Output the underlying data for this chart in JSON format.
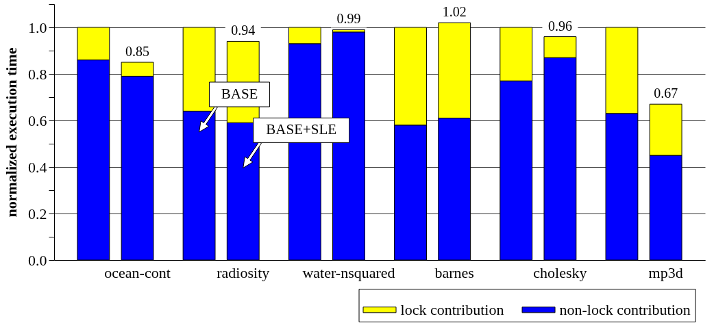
{
  "chart_data": {
    "type": "bar",
    "stacked": true,
    "categories": [
      null,
      "ocean-cont",
      null,
      "radiosity",
      null,
      "water-nsquared",
      null,
      "barnes",
      null,
      "cholesky",
      null,
      "mp3d"
    ],
    "series": [
      {
        "name": "non-lock contribution",
        "color": "#0000ff",
        "values": [
          0.86,
          0.79,
          0.64,
          0.59,
          0.93,
          0.98,
          0.58,
          0.61,
          0.77,
          0.87,
          0.63,
          0.45
        ]
      },
      {
        "name": "lock contribution",
        "color": "#ffff00",
        "values": [
          0.14,
          0.06,
          0.36,
          0.35,
          0.07,
          0.01,
          0.42,
          0.41,
          0.23,
          0.09,
          0.37,
          0.22
        ]
      }
    ],
    "totals": [
      null,
      "0.85",
      null,
      "0.94",
      null,
      "0.99",
      null,
      "1.02",
      null,
      "0.96",
      null,
      "0.67"
    ],
    "ylabel": "normalized execution time",
    "ylim": [
      0,
      1.1
    ],
    "yticks": [
      {
        "value": 0,
        "label": "0.0"
      },
      {
        "value": 0.1,
        "label": null
      },
      0.2,
      {
        "value": 0.3,
        "label": null
      },
      0.4,
      {
        "value": 0.5,
        "label": null
      },
      0.6,
      {
        "value": 0.7,
        "label": null
      },
      0.8,
      {
        "value": 0.9,
        "label": null
      },
      {
        "value": 1,
        "label": "1.0"
      },
      {
        "value": 1.1,
        "label": null
      }
    ],
    "grid": "y",
    "legend": "bottom right",
    "annotations": [
      "BASE",
      "BASE+SLE"
    ]
  }
}
